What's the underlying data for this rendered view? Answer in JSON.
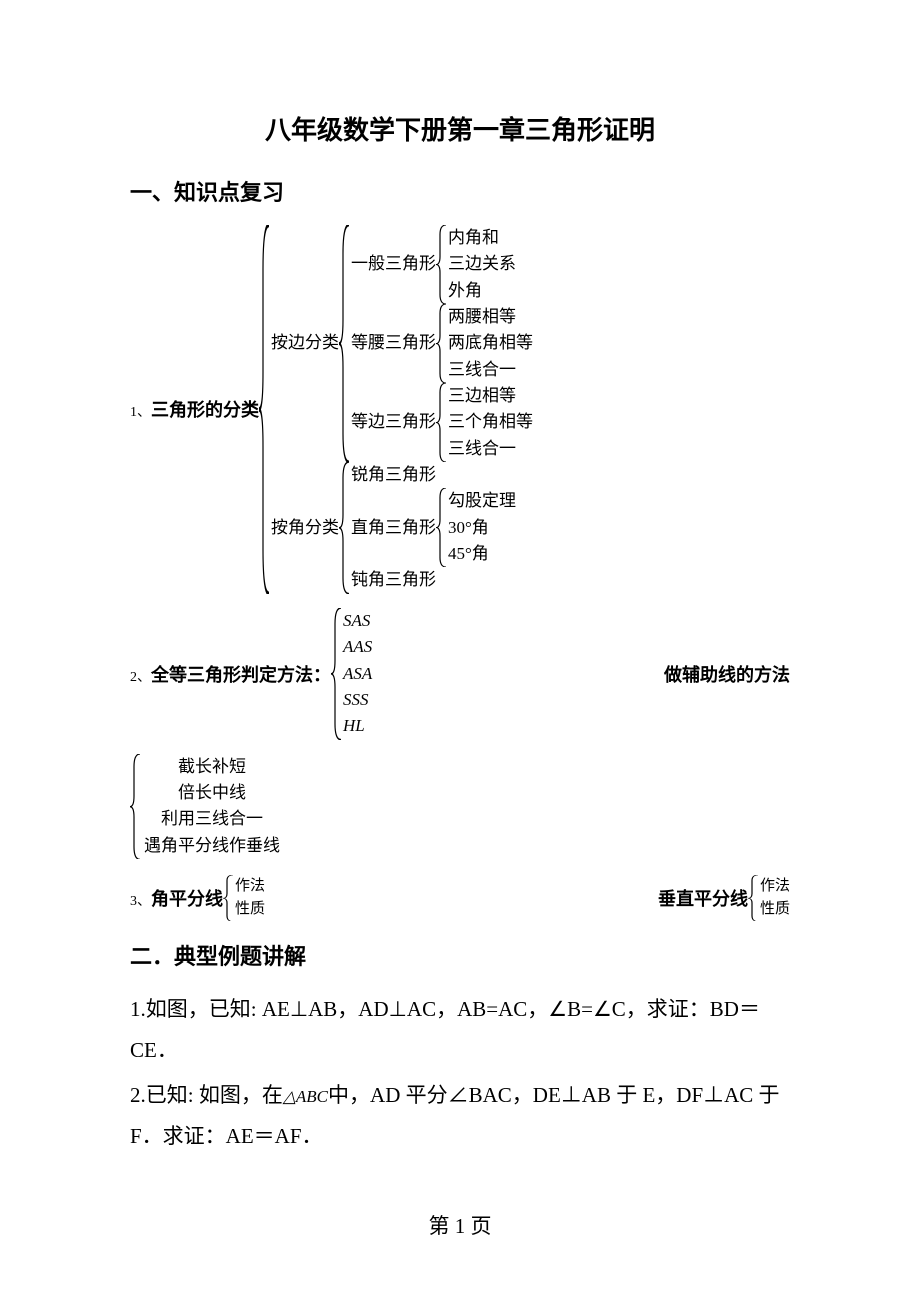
{
  "title": "八年级数学下册第一章三角形证明",
  "section1": "一、知识点复习",
  "item1_num": "1、",
  "item1_label": "三角形的分类",
  "tree1": {
    "branches": [
      {
        "label": "按边分类",
        "children": [
          {
            "label": "一般三角形",
            "leaves": [
              "内角和",
              "三边关系",
              "外角"
            ]
          },
          {
            "label": "等腰三角形",
            "leaves": [
              "两腰相等",
              "两底角相等",
              "三线合一"
            ]
          },
          {
            "label": "等边三角形",
            "leaves": [
              "三边相等",
              "三个角相等",
              "三线合一"
            ]
          }
        ]
      },
      {
        "label": "按角分类",
        "children": [
          {
            "label": "锐角三角形",
            "leaves": []
          },
          {
            "label": "直角三角形",
            "leaves": [
              "勾股定理",
              "30°角",
              "45°角"
            ]
          },
          {
            "label": "钝角三角形",
            "leaves": []
          }
        ]
      }
    ]
  },
  "item2_num": "2、",
  "item2_label": "全等三角形判定方法：",
  "congruence": [
    "SAS",
    "AAS",
    "ASA",
    "SSS",
    "HL"
  ],
  "aux_label": "做辅助线的方法",
  "aux_methods": [
    "截长补短",
    "倍长中线",
    "利用三线合一",
    "遇角平分线作垂线"
  ],
  "item3_num": "3、",
  "item3_label": "角平分线",
  "bisector_props": [
    "作法",
    "性质"
  ],
  "perp_label": "垂直平分线",
  "perp_props": [
    "作法",
    "性质"
  ],
  "section2": "二．典型例题讲解",
  "p1": "1.如图，已知: AE⊥AB，AD⊥AC，AB=AC，∠B=∠C，求证：BD＝CE．",
  "p2_a": "2.已知: 如图，在",
  "p2_tri": "△ABC",
  "p2_b": "中，AD 平分∠BAC，DE⊥AB 于 E，DF⊥AC 于 F．求证：AE＝AF．",
  "footer": "第 1 页"
}
